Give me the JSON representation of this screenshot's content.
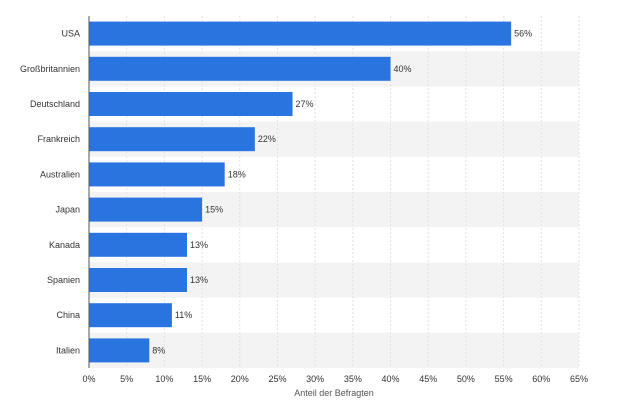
{
  "chart_data": {
    "type": "bar",
    "orientation": "horizontal",
    "categories": [
      "USA",
      "Großbritannien",
      "Deutschland",
      "Frankreich",
      "Australien",
      "Japan",
      "Kanada",
      "Spanien",
      "China",
      "Italien"
    ],
    "values": [
      56,
      40,
      27,
      22,
      18,
      15,
      13,
      13,
      11,
      8
    ],
    "value_labels": [
      "56%",
      "40%",
      "27%",
      "22%",
      "18%",
      "15%",
      "13%",
      "13%",
      "11%",
      "8%"
    ],
    "xlabel": "Anteil der Befragten",
    "ylabel": "",
    "xlim": [
      0,
      65
    ],
    "x_ticks": [
      0,
      5,
      10,
      15,
      20,
      25,
      30,
      35,
      40,
      45,
      50,
      55,
      60,
      65
    ],
    "x_tick_labels": [
      "0%",
      "5%",
      "10%",
      "15%",
      "20%",
      "25%",
      "30%",
      "35%",
      "40%",
      "45%",
      "50%",
      "55%",
      "60%",
      "65%"
    ],
    "grid": true,
    "colors": {
      "bar": "#2a74e0",
      "band": "#f3f3f3",
      "grid": "#e2e2e2",
      "axis": "#555555",
      "text": "#333333"
    }
  }
}
